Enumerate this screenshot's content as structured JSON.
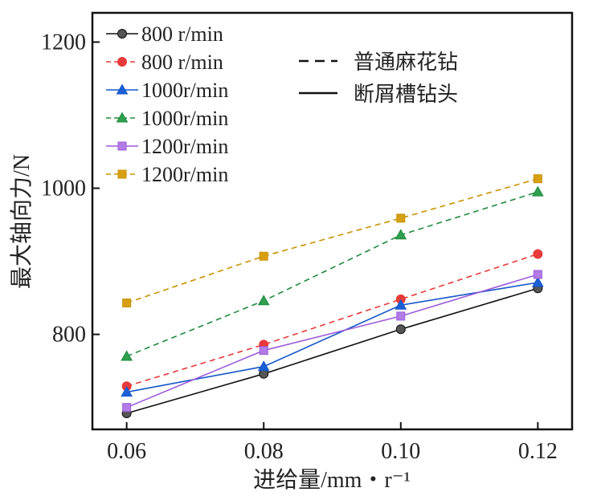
{
  "chart_data": {
    "type": "line",
    "x": [
      0.06,
      0.08,
      0.1,
      0.12
    ],
    "x_tick_labels": [
      "0.06",
      "0.08",
      "0.10",
      "0.12"
    ],
    "y_ticks": [
      800,
      1000,
      1200
    ],
    "xlabel": "进给量/mm・r⁻¹",
    "ylabel": "最大轴向力/N",
    "xlim": [
      0.055,
      0.125
    ],
    "ylim": [
      670,
      1240
    ],
    "grid": false,
    "legend_placement": "top-left",
    "style_legend": [
      {
        "label": "普通麻花钻",
        "dash": "dashed"
      },
      {
        "label": "断屑槽钻头",
        "dash": "solid"
      }
    ],
    "series": [
      {
        "name": "800 r/min",
        "values": [
          692,
          746,
          807,
          863
        ],
        "color": "#111111",
        "marker_fill": "#555555",
        "marker": "circle",
        "dash": "solid"
      },
      {
        "name": "800 r/min",
        "values": [
          729,
          786,
          848,
          910
        ],
        "color": "#e83a3a",
        "marker_fill": "#e83a3a",
        "marker": "circle",
        "dash": "dashed"
      },
      {
        "name": "1000r/min",
        "values": [
          721,
          756,
          840,
          871
        ],
        "color": "#1456c8",
        "marker_fill": "#1a5fd6",
        "marker": "triangle",
        "dash": "solid"
      },
      {
        "name": "1000r/min",
        "values": [
          770,
          846,
          936,
          995
        ],
        "color": "#1f8a3c",
        "marker_fill": "#2ea04f",
        "marker": "triangle",
        "dash": "dashed"
      },
      {
        "name": "1200r/min",
        "values": [
          700,
          778,
          825,
          882
        ],
        "color": "#9b5bd9",
        "marker_fill": "#b27be6",
        "marker": "square",
        "dash": "solid"
      },
      {
        "name": "1200r/min",
        "values": [
          843,
          907,
          959,
          1013
        ],
        "color": "#c89200",
        "marker_fill": "#d6a010",
        "marker": "square",
        "dash": "dashed"
      }
    ]
  }
}
